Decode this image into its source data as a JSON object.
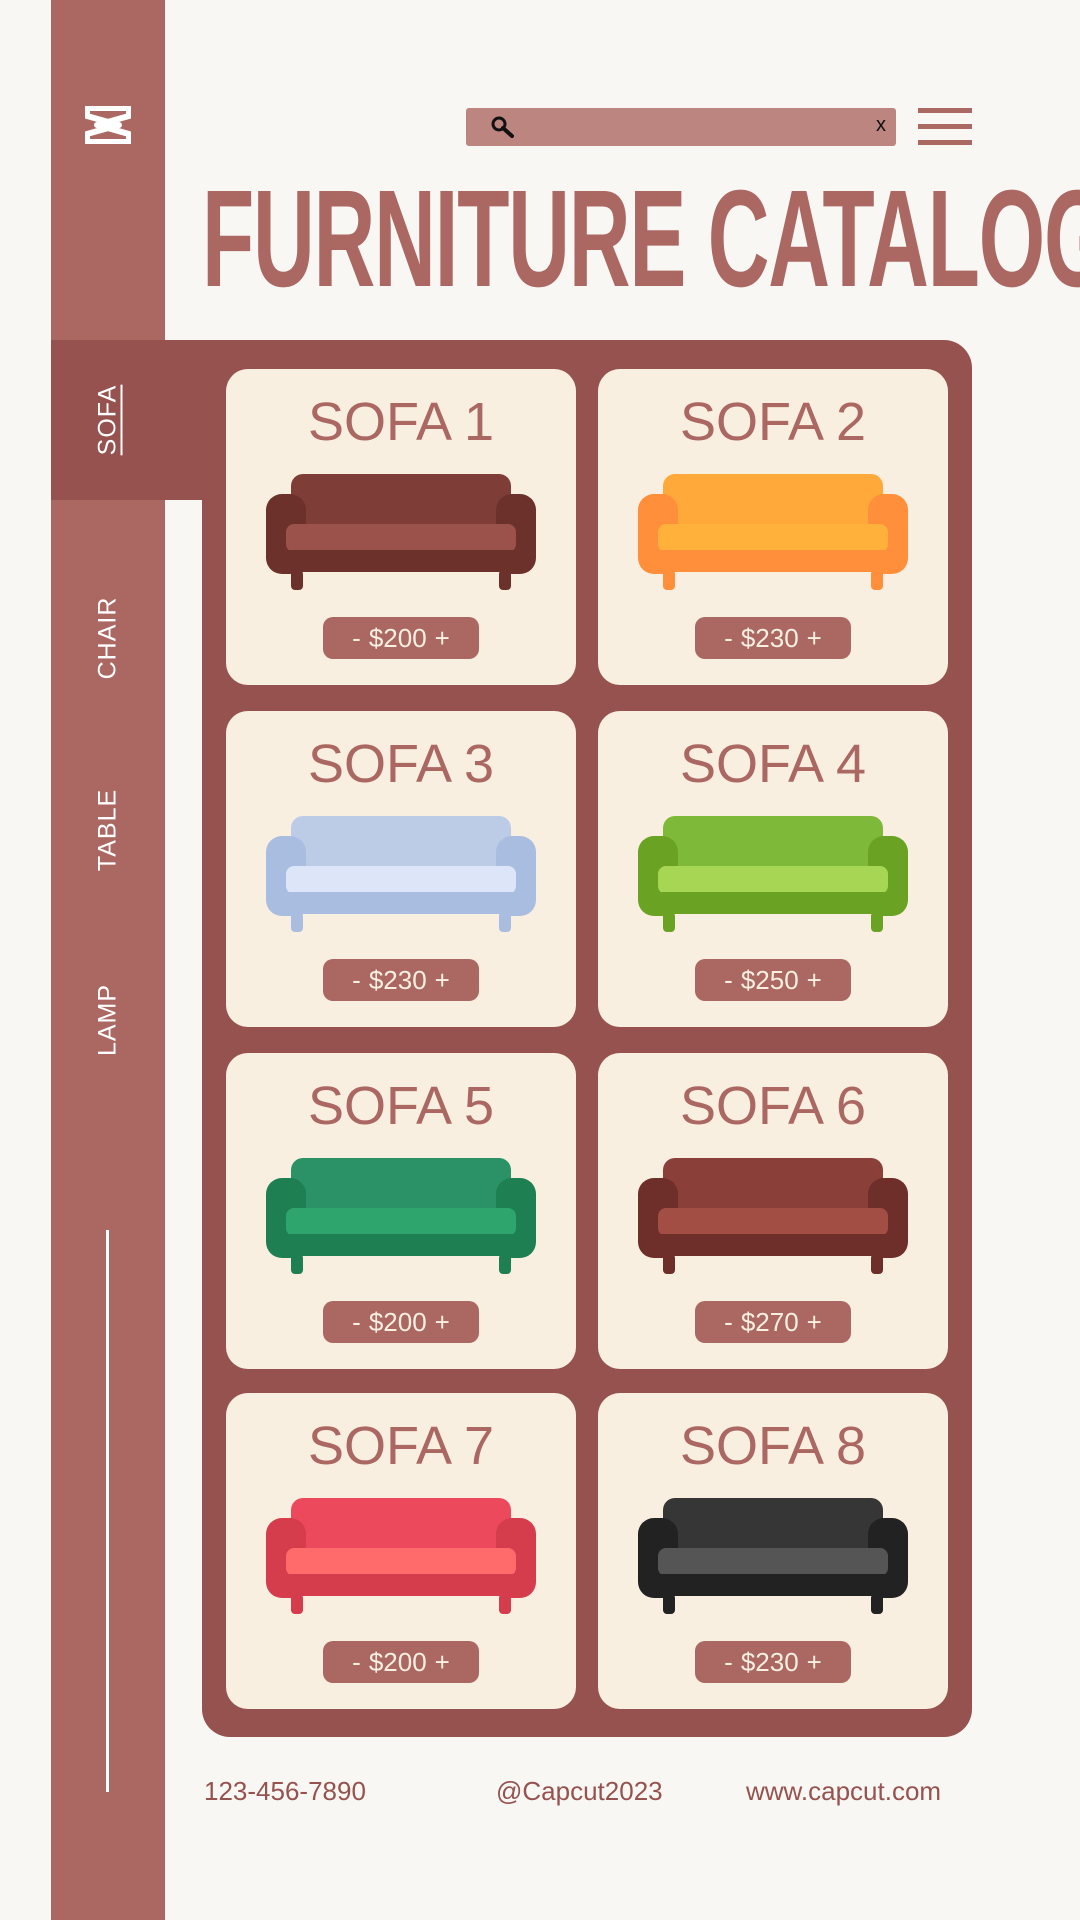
{
  "sidebar": {
    "logo": "CapCut",
    "tabs": [
      {
        "label": "SOFA",
        "active": true
      },
      {
        "label": "CHAIR",
        "active": false
      },
      {
        "label": "TABLE",
        "active": false
      },
      {
        "label": "LAMP",
        "active": false
      }
    ]
  },
  "header": {
    "search": {
      "placeholder": "",
      "icon": "search-icon",
      "clear": "x"
    },
    "menu_icon": "hamburger-icon",
    "title": "FURNITURE CATALOG"
  },
  "products": [
    {
      "name": "SOFA 1",
      "price": "$200",
      "colors": {
        "main": "#9b524b",
        "dark": "#6d312c",
        "back": "#7e3e37"
      }
    },
    {
      "name": "SOFA 2",
      "price": "$230",
      "colors": {
        "main": "#ffb13b",
        "dark": "#ff8f3a",
        "back": "#ffa93a"
      }
    },
    {
      "name": "SOFA 3",
      "price": "$230",
      "colors": {
        "main": "#dce6f8",
        "dark": "#a9bde0",
        "back": "#bccbe6"
      }
    },
    {
      "name": "SOFA 4",
      "price": "$250",
      "colors": {
        "main": "#a6d653",
        "dark": "#6aa324",
        "back": "#7fb93a"
      }
    },
    {
      "name": "SOFA 5",
      "price": "$200",
      "colors": {
        "main": "#2fa56e",
        "dark": "#1d7f52",
        "back": "#2a9266"
      }
    },
    {
      "name": "SOFA 6",
      "price": "$270",
      "colors": {
        "main": "#a34e45",
        "dark": "#6e2e2a",
        "back": "#8a3f38"
      }
    },
    {
      "name": "SOFA 7",
      "price": "$200",
      "colors": {
        "main": "#ff6a6a",
        "dark": "#d53c4c",
        "back": "#ec4a5c"
      }
    },
    {
      "name": "SOFA 8",
      "price": "$230",
      "colors": {
        "main": "#555555",
        "dark": "#222222",
        "back": "#363636"
      }
    }
  ],
  "price_controls": {
    "minus": "-",
    "plus": "+"
  },
  "footer": {
    "phone": "123-456-7890",
    "social": "@Capcut2023",
    "website": "www.capcut.com"
  },
  "colors": {
    "accent": "#ab6762",
    "panel": "#95524e",
    "card": "#f9efe0",
    "background": "#f9f7f3"
  }
}
